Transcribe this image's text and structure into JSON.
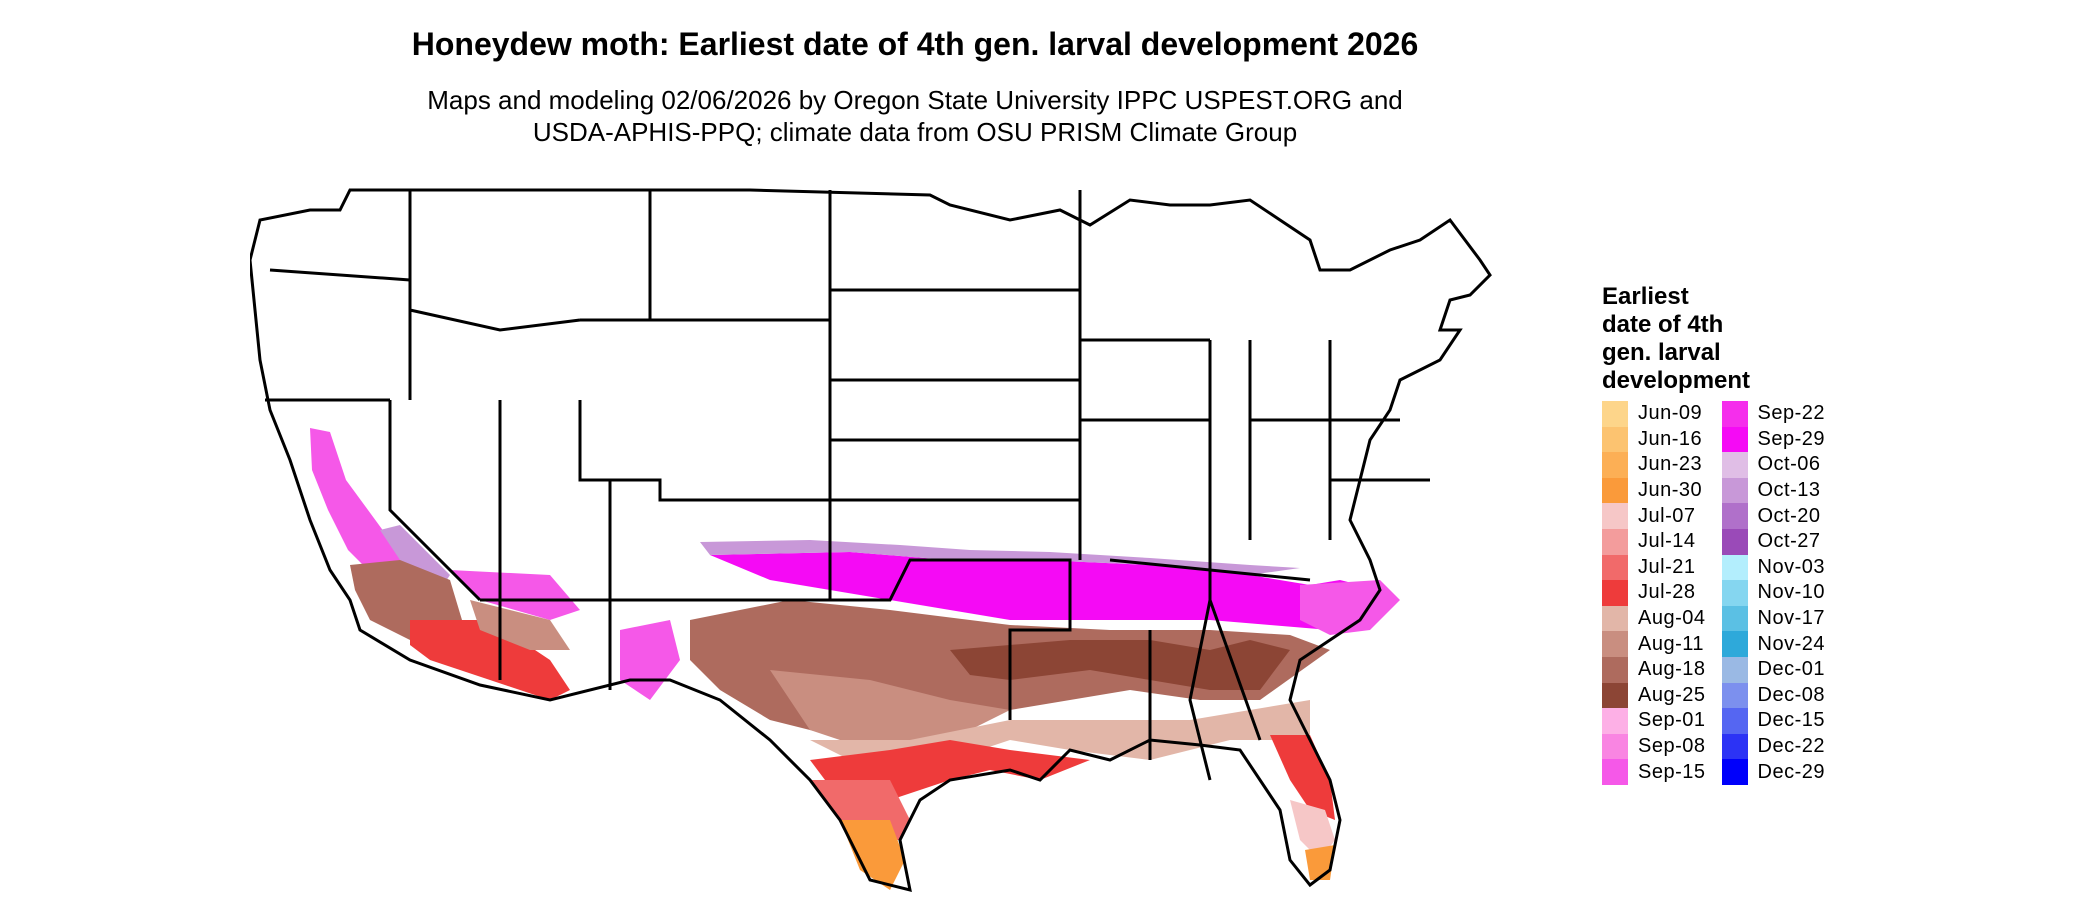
{
  "title": "Honeydew moth: Earliest date of 4th gen. larval development 2026",
  "subtitle_line1": "Maps and modeling 02/06/2026 by Oregon State University IPPC USPEST.ORG and",
  "subtitle_line2": "USDA-APHIS-PPQ; climate data from OSU PRISM Climate Group",
  "legend": {
    "title_lines": [
      "Earliest",
      "date of 4th",
      "gen. larval",
      "development"
    ],
    "items": [
      {
        "label": "Jun-09",
        "color": "#FDD58A"
      },
      {
        "label": "Jun-16",
        "color": "#FCC370"
      },
      {
        "label": "Jun-23",
        "color": "#FCAF55"
      },
      {
        "label": "Jun-30",
        "color": "#FA9A3A"
      },
      {
        "label": "Jul-07",
        "color": "#F6C7C7"
      },
      {
        "label": "Jul-14",
        "color": "#F39C9C"
      },
      {
        "label": "Jul-21",
        "color": "#F16A6A"
      },
      {
        "label": "Jul-28",
        "color": "#EE3B3B"
      },
      {
        "label": "Aug-04",
        "color": "#E2B6A8"
      },
      {
        "label": "Aug-11",
        "color": "#C98E80"
      },
      {
        "label": "Aug-18",
        "color": "#AE6B5E"
      },
      {
        "label": "Aug-25",
        "color": "#8C4535"
      },
      {
        "label": "Sep-01",
        "color": "#FDB0E6"
      },
      {
        "label": "Sep-08",
        "color": "#F985E2"
      },
      {
        "label": "Sep-15",
        "color": "#F558E8"
      },
      {
        "label": "Sep-22",
        "color": "#F52EEC"
      },
      {
        "label": "Sep-29",
        "color": "#F50AF5"
      },
      {
        "label": "Oct-06",
        "color": "#E0BEE6"
      },
      {
        "label": "Oct-13",
        "color": "#C898D8"
      },
      {
        "label": "Oct-20",
        "color": "#B070CA"
      },
      {
        "label": "Oct-27",
        "color": "#9A4AB8"
      },
      {
        "label": "Nov-03",
        "color": "#B3EEFD"
      },
      {
        "label": "Nov-10",
        "color": "#85D6F0"
      },
      {
        "label": "Nov-17",
        "color": "#5BC0E4"
      },
      {
        "label": "Nov-24",
        "color": "#2EA9DA"
      },
      {
        "label": "Dec-01",
        "color": "#9AB9E4"
      },
      {
        "label": "Dec-08",
        "color": "#7C90EE"
      },
      {
        "label": "Dec-15",
        "color": "#5566F2"
      },
      {
        "label": "Dec-22",
        "color": "#2C33F5"
      },
      {
        "label": "Dec-29",
        "color": "#0000FB"
      }
    ]
  }
}
